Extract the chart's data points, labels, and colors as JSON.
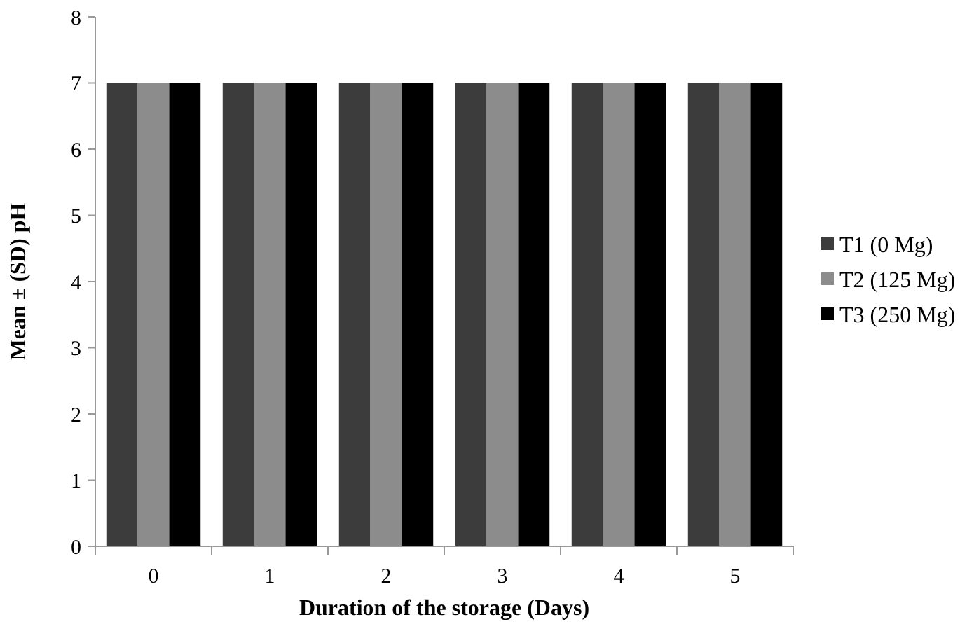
{
  "chart_data": {
    "type": "bar",
    "xlabel": "Duration of the storage (Days)",
    "ylabel": "Mean ± (SD) pH",
    "categories": [
      "0",
      "1",
      "2",
      "3",
      "4",
      "5"
    ],
    "series": [
      {
        "name": "T1 (0 Mg)",
        "color": "#3c3c3c",
        "values": [
          7,
          7,
          7,
          7,
          7,
          7
        ]
      },
      {
        "name": "T2 (125 Mg)",
        "color": "#8c8c8c",
        "values": [
          7,
          7,
          7,
          7,
          7,
          7
        ]
      },
      {
        "name": "T3 (250 Mg)",
        "color": "#000000",
        "values": [
          7,
          7,
          7,
          7,
          7,
          7
        ]
      }
    ],
    "ylim": [
      0,
      8
    ],
    "yticks": [
      0,
      1,
      2,
      3,
      4,
      5,
      6,
      7,
      8
    ],
    "grid": false,
    "legend": "right"
  }
}
